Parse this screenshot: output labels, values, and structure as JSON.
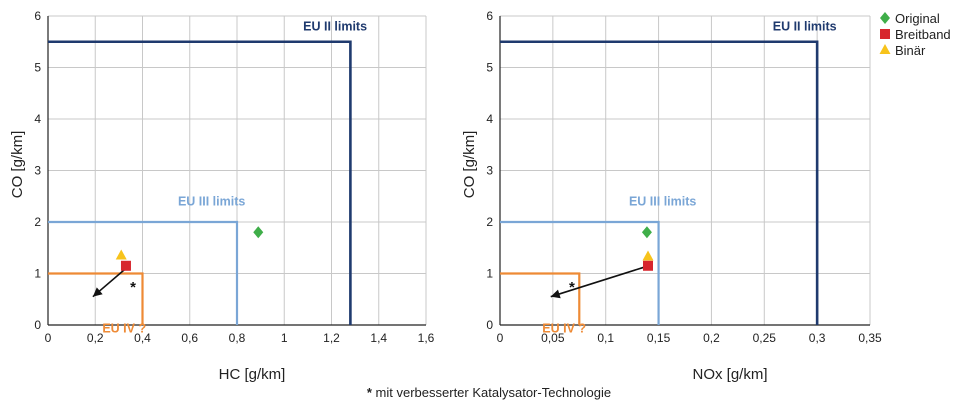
{
  "colors": {
    "eu2": "#1f3a6e",
    "eu3": "#7aa6d6",
    "eu4": "#ee8a35",
    "grid": "#c8c8c8",
    "arrow": "#111111"
  },
  "legend": [
    {
      "label": "Original",
      "marker": "diamond",
      "color": "#3fae49"
    },
    {
      "label": "Breitband",
      "marker": "square",
      "color": "#d7262e"
    },
    {
      "label": "Binär",
      "marker": "triangle",
      "color": "#f7c31b"
    }
  ],
  "footnote": {
    "star": "*",
    "text": " mit verbesserter Katalysator-Technologie"
  },
  "chart_data": [
    {
      "type": "scatter",
      "xlabel": "HC [g/km]",
      "ylabel": "CO [g/km]",
      "xlim": [
        0,
        1.6
      ],
      "ylim": [
        0,
        6
      ],
      "xticks": [
        0,
        0.2,
        0.4,
        0.6,
        0.8,
        1,
        1.2,
        1.4,
        1.6
      ],
      "xtick_labels": [
        "0",
        "0,2",
        "0,4",
        "0,6",
        "0,8",
        "1",
        "1,2",
        "1,4",
        "1,6"
      ],
      "yticks": [
        0,
        1,
        2,
        3,
        4,
        5,
        6
      ],
      "ytick_labels": [
        "0",
        "1",
        "2",
        "3",
        "4",
        "5",
        "6"
      ],
      "grid": true,
      "series": [
        {
          "name": "Original",
          "x": [
            0.89
          ],
          "y": [
            1.8
          ]
        },
        {
          "name": "Breitband",
          "x": [
            0.33
          ],
          "y": [
            1.15
          ]
        },
        {
          "name": "Binär",
          "x": [
            0.31
          ],
          "y": [
            1.35
          ]
        }
      ],
      "limits": [
        {
          "label": "EU II limits",
          "x": 1.28,
          "y": 5.5,
          "color_key": "eu2",
          "label_at": [
            1.08,
            5.72
          ]
        },
        {
          "label": "EU III limits",
          "x": 0.8,
          "y": 2.0,
          "color_key": "eu3",
          "label_at": [
            0.55,
            2.32
          ]
        },
        {
          "label": "EU IV ?",
          "x": 0.4,
          "y": 1.0,
          "color_key": "eu4",
          "label_at": [
            0.23,
            -0.15
          ]
        }
      ],
      "arrow": {
        "from": [
          0.33,
          1.1
        ],
        "to": [
          0.19,
          0.55
        ],
        "note": "*",
        "note_at": [
          0.36,
          0.74
        ]
      }
    },
    {
      "type": "scatter",
      "xlabel": "NOx [g/km]",
      "ylabel": "CO [g/km]",
      "xlim": [
        0,
        0.35
      ],
      "ylim": [
        0,
        6
      ],
      "xticks": [
        0,
        0.05,
        0.1,
        0.15,
        0.2,
        0.25,
        0.3,
        0.35
      ],
      "xtick_labels": [
        "0",
        "0,05",
        "0,1",
        "0,15",
        "0,2",
        "0,25",
        "0,3",
        "0,35"
      ],
      "yticks": [
        0,
        1,
        2,
        3,
        4,
        5,
        6
      ],
      "ytick_labels": [
        "0",
        "1",
        "2",
        "3",
        "4",
        "5",
        "6"
      ],
      "grid": true,
      "series": [
        {
          "name": "Original",
          "x": [
            0.139
          ],
          "y": [
            1.8
          ]
        },
        {
          "name": "Breitband",
          "x": [
            0.14
          ],
          "y": [
            1.15
          ]
        },
        {
          "name": "Binär",
          "x": [
            0.14
          ],
          "y": [
            1.33
          ]
        }
      ],
      "limits": [
        {
          "label": "EU II limits",
          "x": 0.3,
          "y": 5.5,
          "color_key": "eu2",
          "label_at": [
            0.258,
            5.72
          ]
        },
        {
          "label": "EU III limits",
          "x": 0.15,
          "y": 2.0,
          "color_key": "eu3",
          "label_at": [
            0.122,
            2.32
          ]
        },
        {
          "label": "EU IV ?",
          "x": 0.075,
          "y": 1.0,
          "color_key": "eu4",
          "label_at": [
            0.04,
            -0.15
          ]
        }
      ],
      "arrow": {
        "from": [
          0.136,
          1.12
        ],
        "to": [
          0.048,
          0.55
        ],
        "note": "*",
        "note_at": [
          0.068,
          0.74
        ]
      }
    }
  ]
}
